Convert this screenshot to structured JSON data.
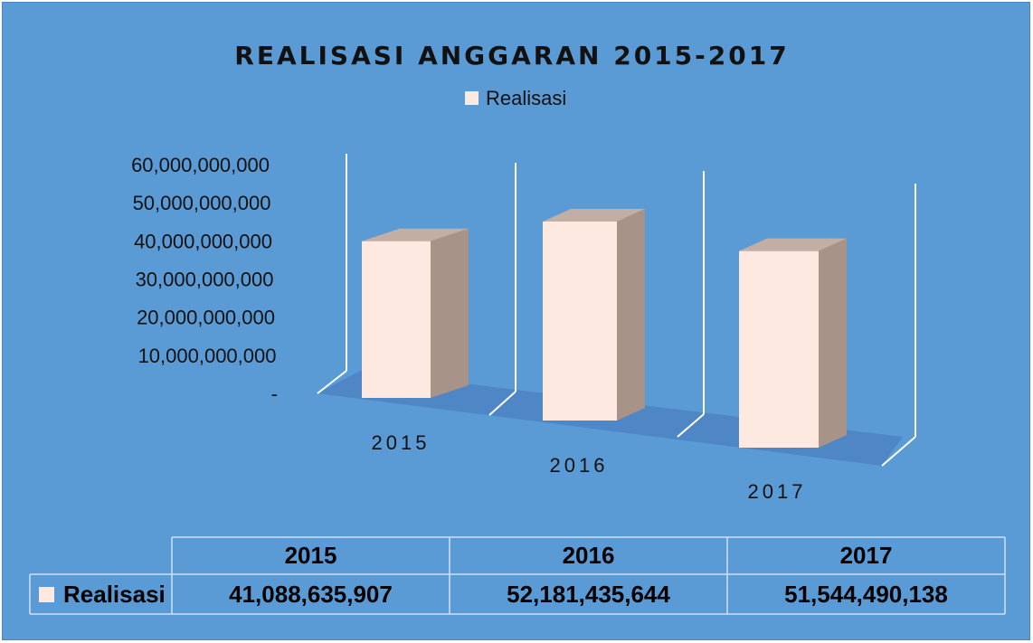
{
  "chart_data": {
    "type": "bar",
    "title": "REALISASI ANGGARAN 2015-2017",
    "categories": [
      "2015",
      "2016",
      "2017"
    ],
    "series": [
      {
        "name": "Realisasi",
        "values": [
          41088635907,
          52181435644,
          51544490138
        ],
        "value_labels": [
          "41,088,635,907",
          "52,181,435,644",
          "51,544,490,138"
        ]
      }
    ],
    "yticks": [
      "-",
      "10,000,000,000",
      "20,000,000,000",
      "30,000,000,000",
      "40,000,000,000",
      "50,000,000,000",
      "60,000,000,000"
    ],
    "ylim": [
      0,
      60000000000
    ],
    "legend_position": "top",
    "data_table": true,
    "colors": {
      "background": "#5b9bd5",
      "bar_front": "#fde9df",
      "bar_side": "#a89388",
      "bar_top": "#c3aea4",
      "floor": "#4f86c6",
      "gridline": "#ffffff"
    }
  }
}
